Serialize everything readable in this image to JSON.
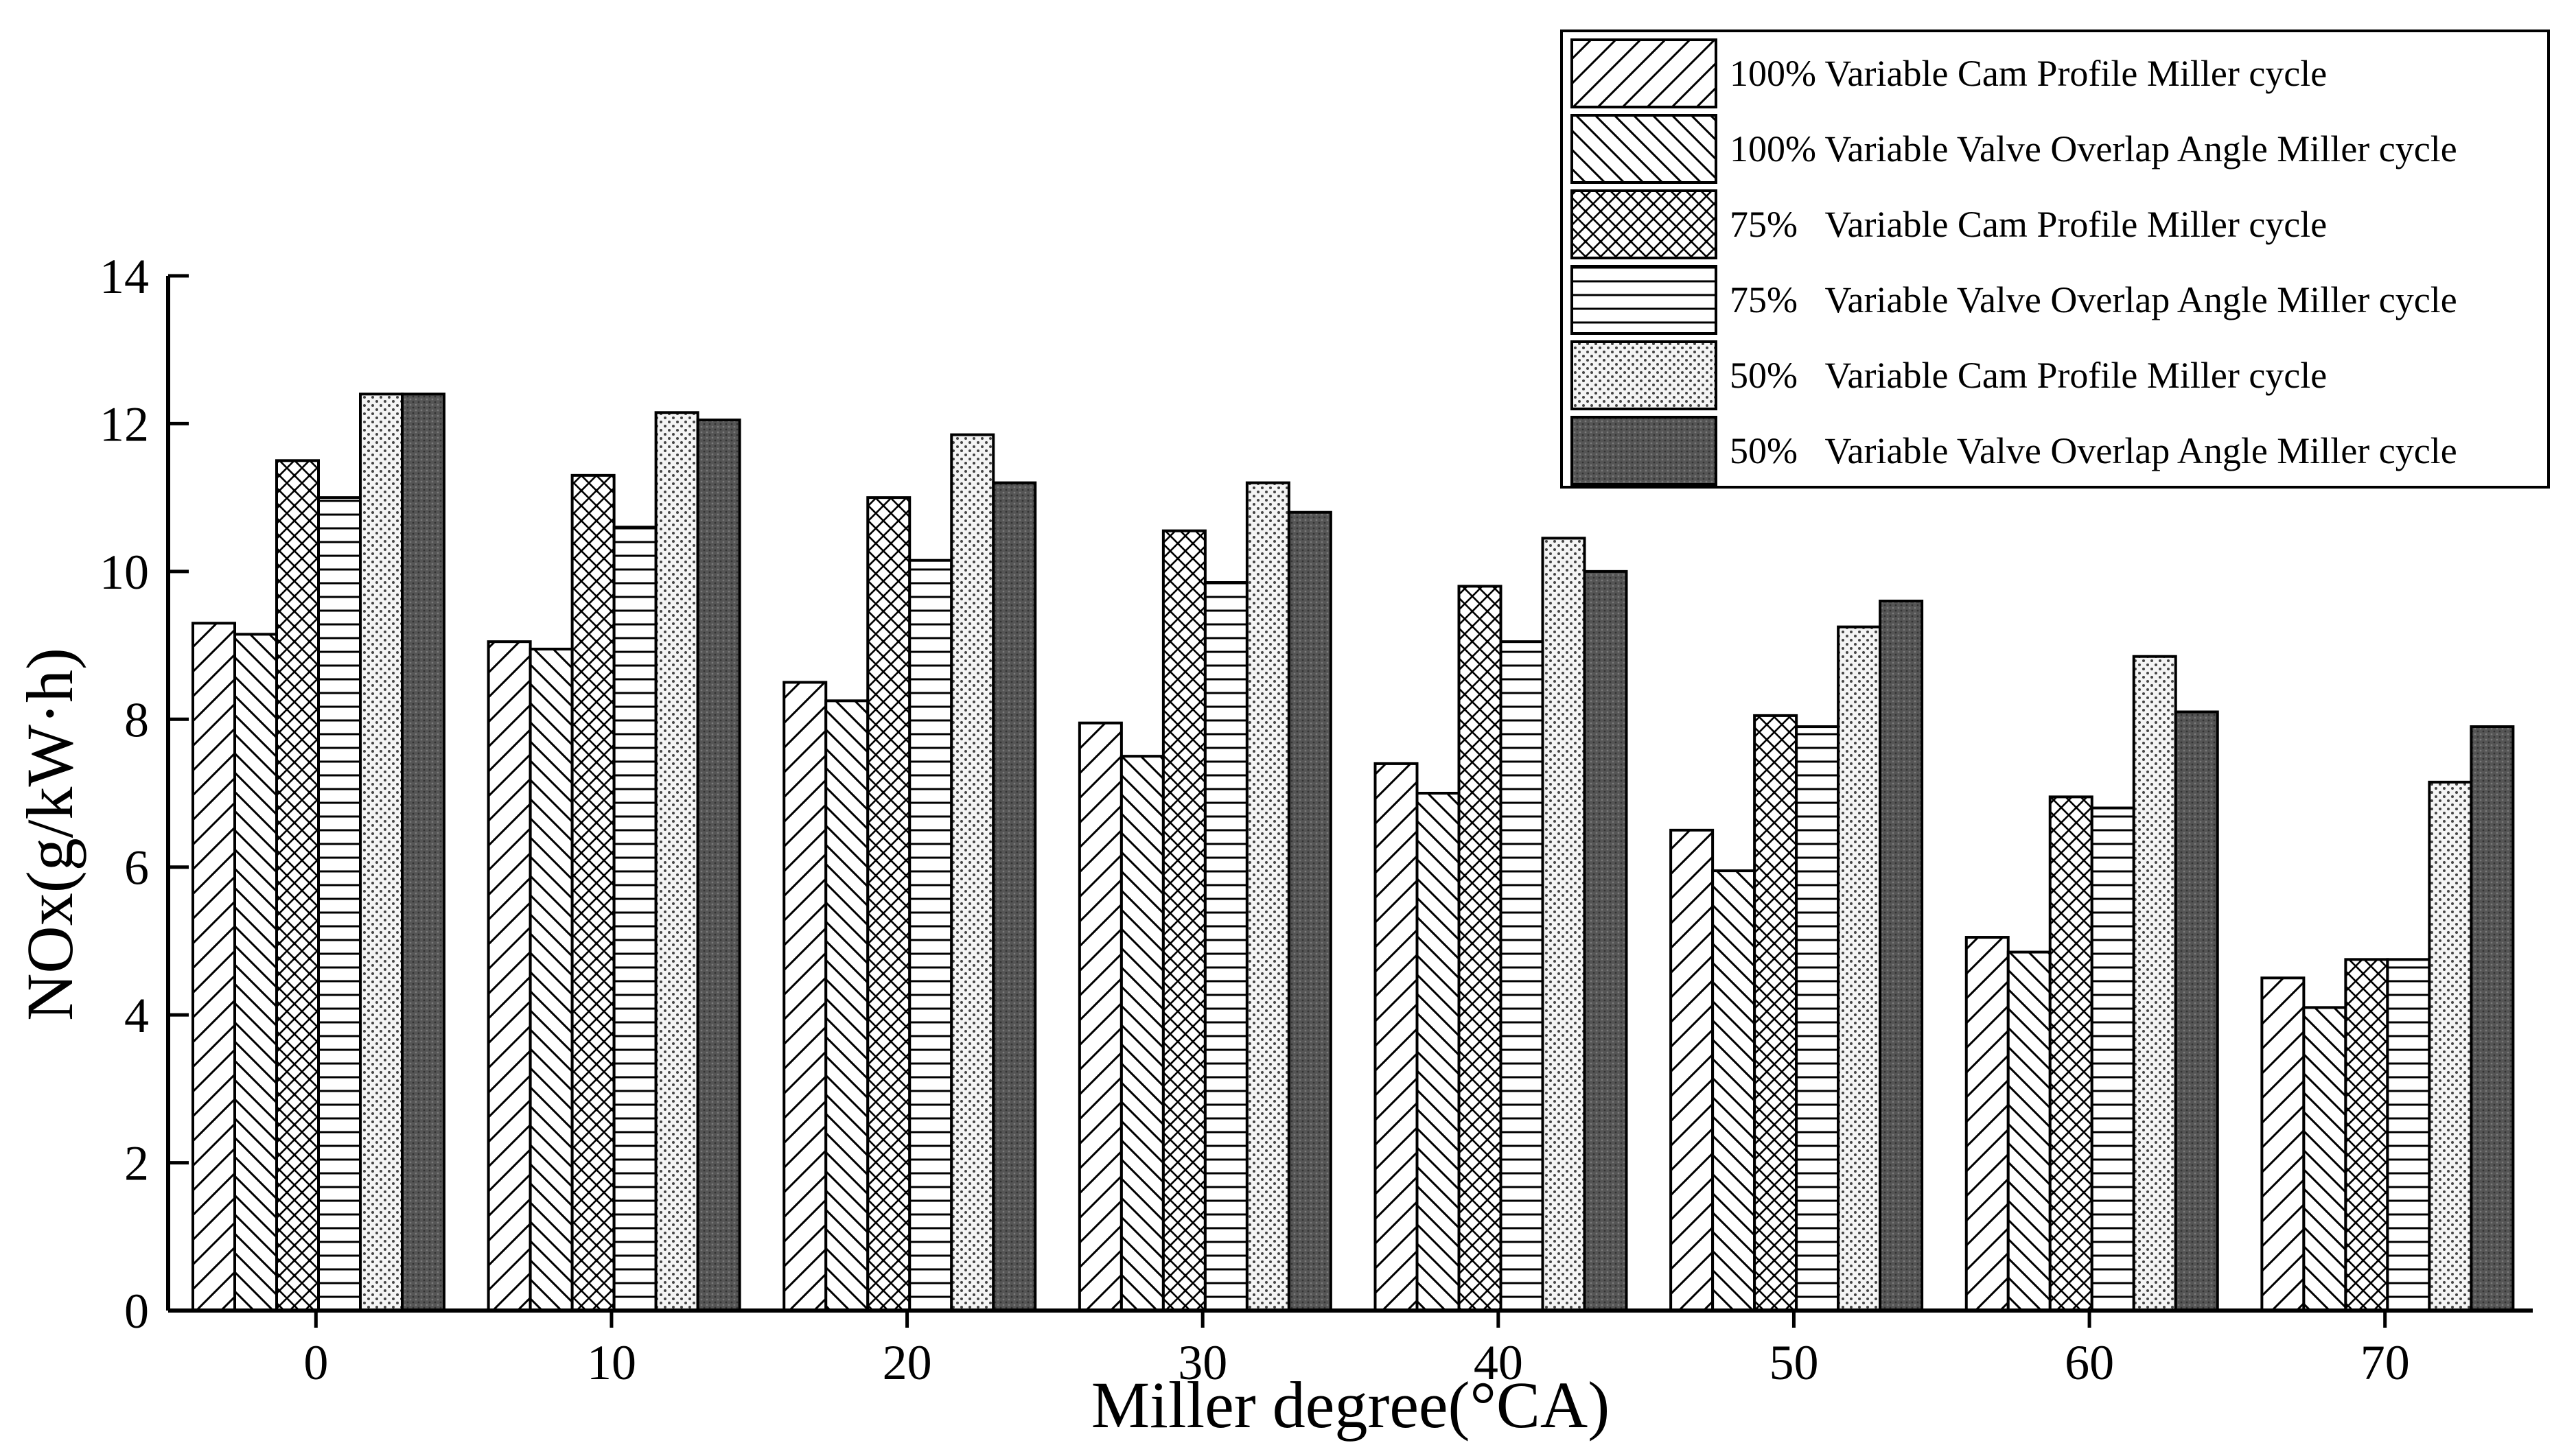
{
  "chart_data": {
    "type": "bar",
    "title": "",
    "xlabel": "Miller degree(°CA)",
    "ylabel": "NOx(g/kW·h)",
    "ylim": [
      0,
      14
    ],
    "yticks": [
      "0",
      "2",
      "4",
      "6",
      "8",
      "10",
      "12",
      "14"
    ],
    "categories": [
      "0",
      "10",
      "20",
      "30",
      "40",
      "50",
      "60",
      "70"
    ],
    "legend_position": "top-right",
    "series": [
      {
        "name": "100% Variable Cam Profile Miller cycle",
        "pattern": "diag-fwd",
        "values": [
          9.3,
          9.05,
          8.5,
          7.95,
          7.4,
          6.5,
          5.05,
          4.5
        ]
      },
      {
        "name": "100% Variable Valve Overlap Angle Miller cycle",
        "pattern": "diag-back",
        "values": [
          9.15,
          8.95,
          8.25,
          7.5,
          7.0,
          5.95,
          4.85,
          4.1
        ]
      },
      {
        "name": "75%   Variable Cam Profile Miller cycle",
        "pattern": "crosshatch",
        "values": [
          11.5,
          11.3,
          11.0,
          10.55,
          9.8,
          8.05,
          6.95,
          4.75
        ]
      },
      {
        "name": "75%   Variable Valve Overlap Angle Miller cycle",
        "pattern": "horizontal",
        "values": [
          11.0,
          10.6,
          10.15,
          9.85,
          9.05,
          7.9,
          6.8,
          4.75
        ]
      },
      {
        "name": "50%   Variable Cam Profile Miller cycle",
        "pattern": "dots",
        "values": [
          12.4,
          12.15,
          11.85,
          11.2,
          10.45,
          9.25,
          8.85,
          7.15
        ]
      },
      {
        "name": "50%   Variable Valve Overlap Angle Miller cycle",
        "pattern": "dark",
        "values": [
          12.4,
          12.05,
          11.2,
          10.8,
          10.0,
          9.6,
          8.1,
          7.9
        ]
      }
    ]
  }
}
